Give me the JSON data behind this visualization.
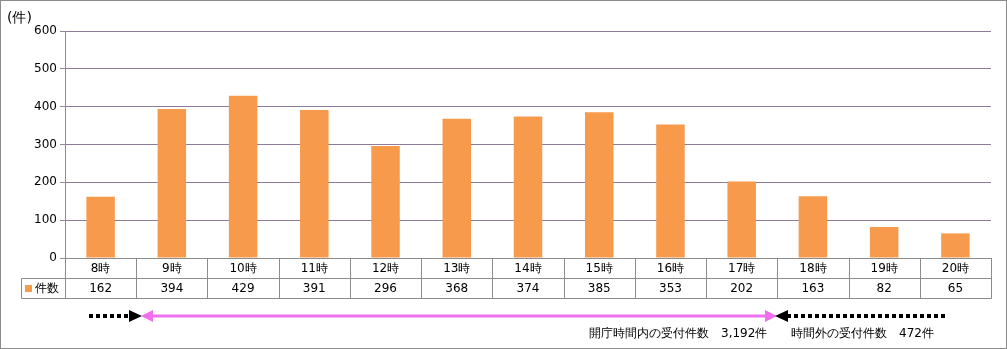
{
  "chart_data": {
    "type": "bar",
    "ylabel": "(件)",
    "categories": [
      "8時",
      "9時",
      "10時",
      "11時",
      "12時",
      "13時",
      "14時",
      "15時",
      "16時",
      "17時",
      "18時",
      "19時",
      "20時"
    ],
    "series": [
      {
        "name": "件数",
        "color": "#f79a4c",
        "values": [
          162,
          394,
          429,
          391,
          296,
          368,
          374,
          385,
          353,
          202,
          163,
          82,
          65
        ]
      }
    ],
    "ylim": [
      0,
      600
    ],
    "yticks": [
      0,
      100,
      200,
      300,
      400,
      500,
      600
    ],
    "grid": "y",
    "data_labels": true,
    "legend": "bottom left",
    "annotations": [
      "開庁時間内の受付件数　3,192件",
      "時間外の受付件数　472件"
    ]
  }
}
